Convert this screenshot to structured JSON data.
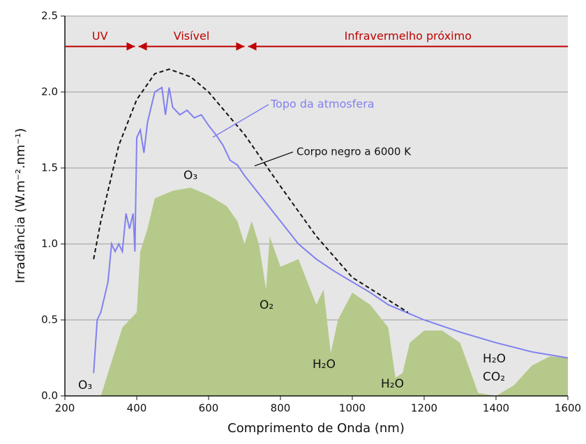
{
  "chart_data": {
    "type": "line",
    "x_label": "Comprimento de Onda (nm)",
    "y_label": "Irradiância (W.m⁻².nm⁻¹)",
    "xlim": [
      200,
      1600
    ],
    "ylim": [
      0,
      2.5
    ],
    "xticks": [
      200,
      400,
      600,
      800,
      1000,
      1200,
      1400,
      1600
    ],
    "yticks": [
      {
        "value": 0,
        "label": "0.0"
      },
      0.5,
      {
        "value": 1,
        "label": "1.0"
      },
      1.5,
      {
        "value": 2,
        "label": "2.0"
      },
      2.5
    ],
    "grid": true,
    "bands": [
      {
        "label": "UV",
        "start": 200,
        "end": 395
      },
      {
        "label": "Visível",
        "start": 405,
        "end": 700
      },
      {
        "label": "Infravermelho próximo",
        "start": 710,
        "end": 1600
      }
    ],
    "band_level": 2.3,
    "band_color": "#c00000",
    "series": [
      {
        "name": "Topo da atmosfera",
        "style": "line",
        "color": "#8080f0",
        "x": [
          280,
          290,
          300,
          310,
          320,
          330,
          340,
          350,
          360,
          370,
          380,
          390,
          395,
          400,
          410,
          420,
          430,
          450,
          470,
          480,
          490,
          500,
          520,
          540,
          560,
          580,
          600,
          620,
          640,
          660,
          680,
          700,
          750,
          800,
          850,
          900,
          950,
          1000,
          1050,
          1100,
          1200,
          1300,
          1400,
          1500,
          1600
        ],
        "values": [
          0.15,
          0.5,
          0.55,
          0.65,
          0.75,
          1.0,
          0.95,
          1.0,
          0.95,
          1.2,
          1.1,
          1.2,
          0.95,
          1.7,
          1.75,
          1.6,
          1.8,
          2.0,
          2.03,
          1.85,
          2.03,
          1.9,
          1.85,
          1.88,
          1.83,
          1.85,
          1.78,
          1.72,
          1.65,
          1.55,
          1.52,
          1.45,
          1.3,
          1.15,
          1.0,
          0.9,
          0.82,
          0.75,
          0.68,
          0.6,
          0.5,
          0.42,
          0.35,
          0.29,
          0.25
        ]
      },
      {
        "name": "Corpo negro a 6000 K",
        "style": "dashed",
        "color": "#111111",
        "x": [
          280,
          300,
          350,
          400,
          450,
          490,
          550,
          600,
          700,
          800,
          900,
          1000,
          1155
        ],
        "values": [
          0.9,
          1.15,
          1.65,
          1.95,
          2.12,
          2.15,
          2.1,
          2.0,
          1.72,
          1.38,
          1.05,
          0.78,
          0.55
        ]
      },
      {
        "style": "area",
        "color": "#b5c98a",
        "x": [
          300,
          320,
          340,
          360,
          380,
          400,
          410,
          430,
          450,
          500,
          550,
          600,
          650,
          680,
          700,
          720,
          740,
          760,
          770,
          800,
          850,
          900,
          920,
          940,
          960,
          1000,
          1050,
          1100,
          1120,
          1140,
          1160,
          1200,
          1250,
          1300,
          1350,
          1400,
          1450,
          1500,
          1550,
          1600
        ],
        "values": [
          0,
          0.15,
          0.3,
          0.45,
          0.5,
          0.55,
          0.95,
          1.1,
          1.3,
          1.35,
          1.37,
          1.32,
          1.25,
          1.15,
          1.0,
          1.15,
          1.0,
          0.7,
          1.05,
          0.85,
          0.9,
          0.6,
          0.7,
          0.28,
          0.5,
          0.68,
          0.6,
          0.45,
          0.12,
          0.15,
          0.35,
          0.43,
          0.43,
          0.35,
          0.02,
          0,
          0.07,
          0.2,
          0.26,
          0.25
        ]
      }
    ],
    "annotations": [
      "O₃",
      "O₃",
      "O₂",
      "H₂O",
      "H₂O",
      "H₂O",
      "CO₂"
    ]
  }
}
